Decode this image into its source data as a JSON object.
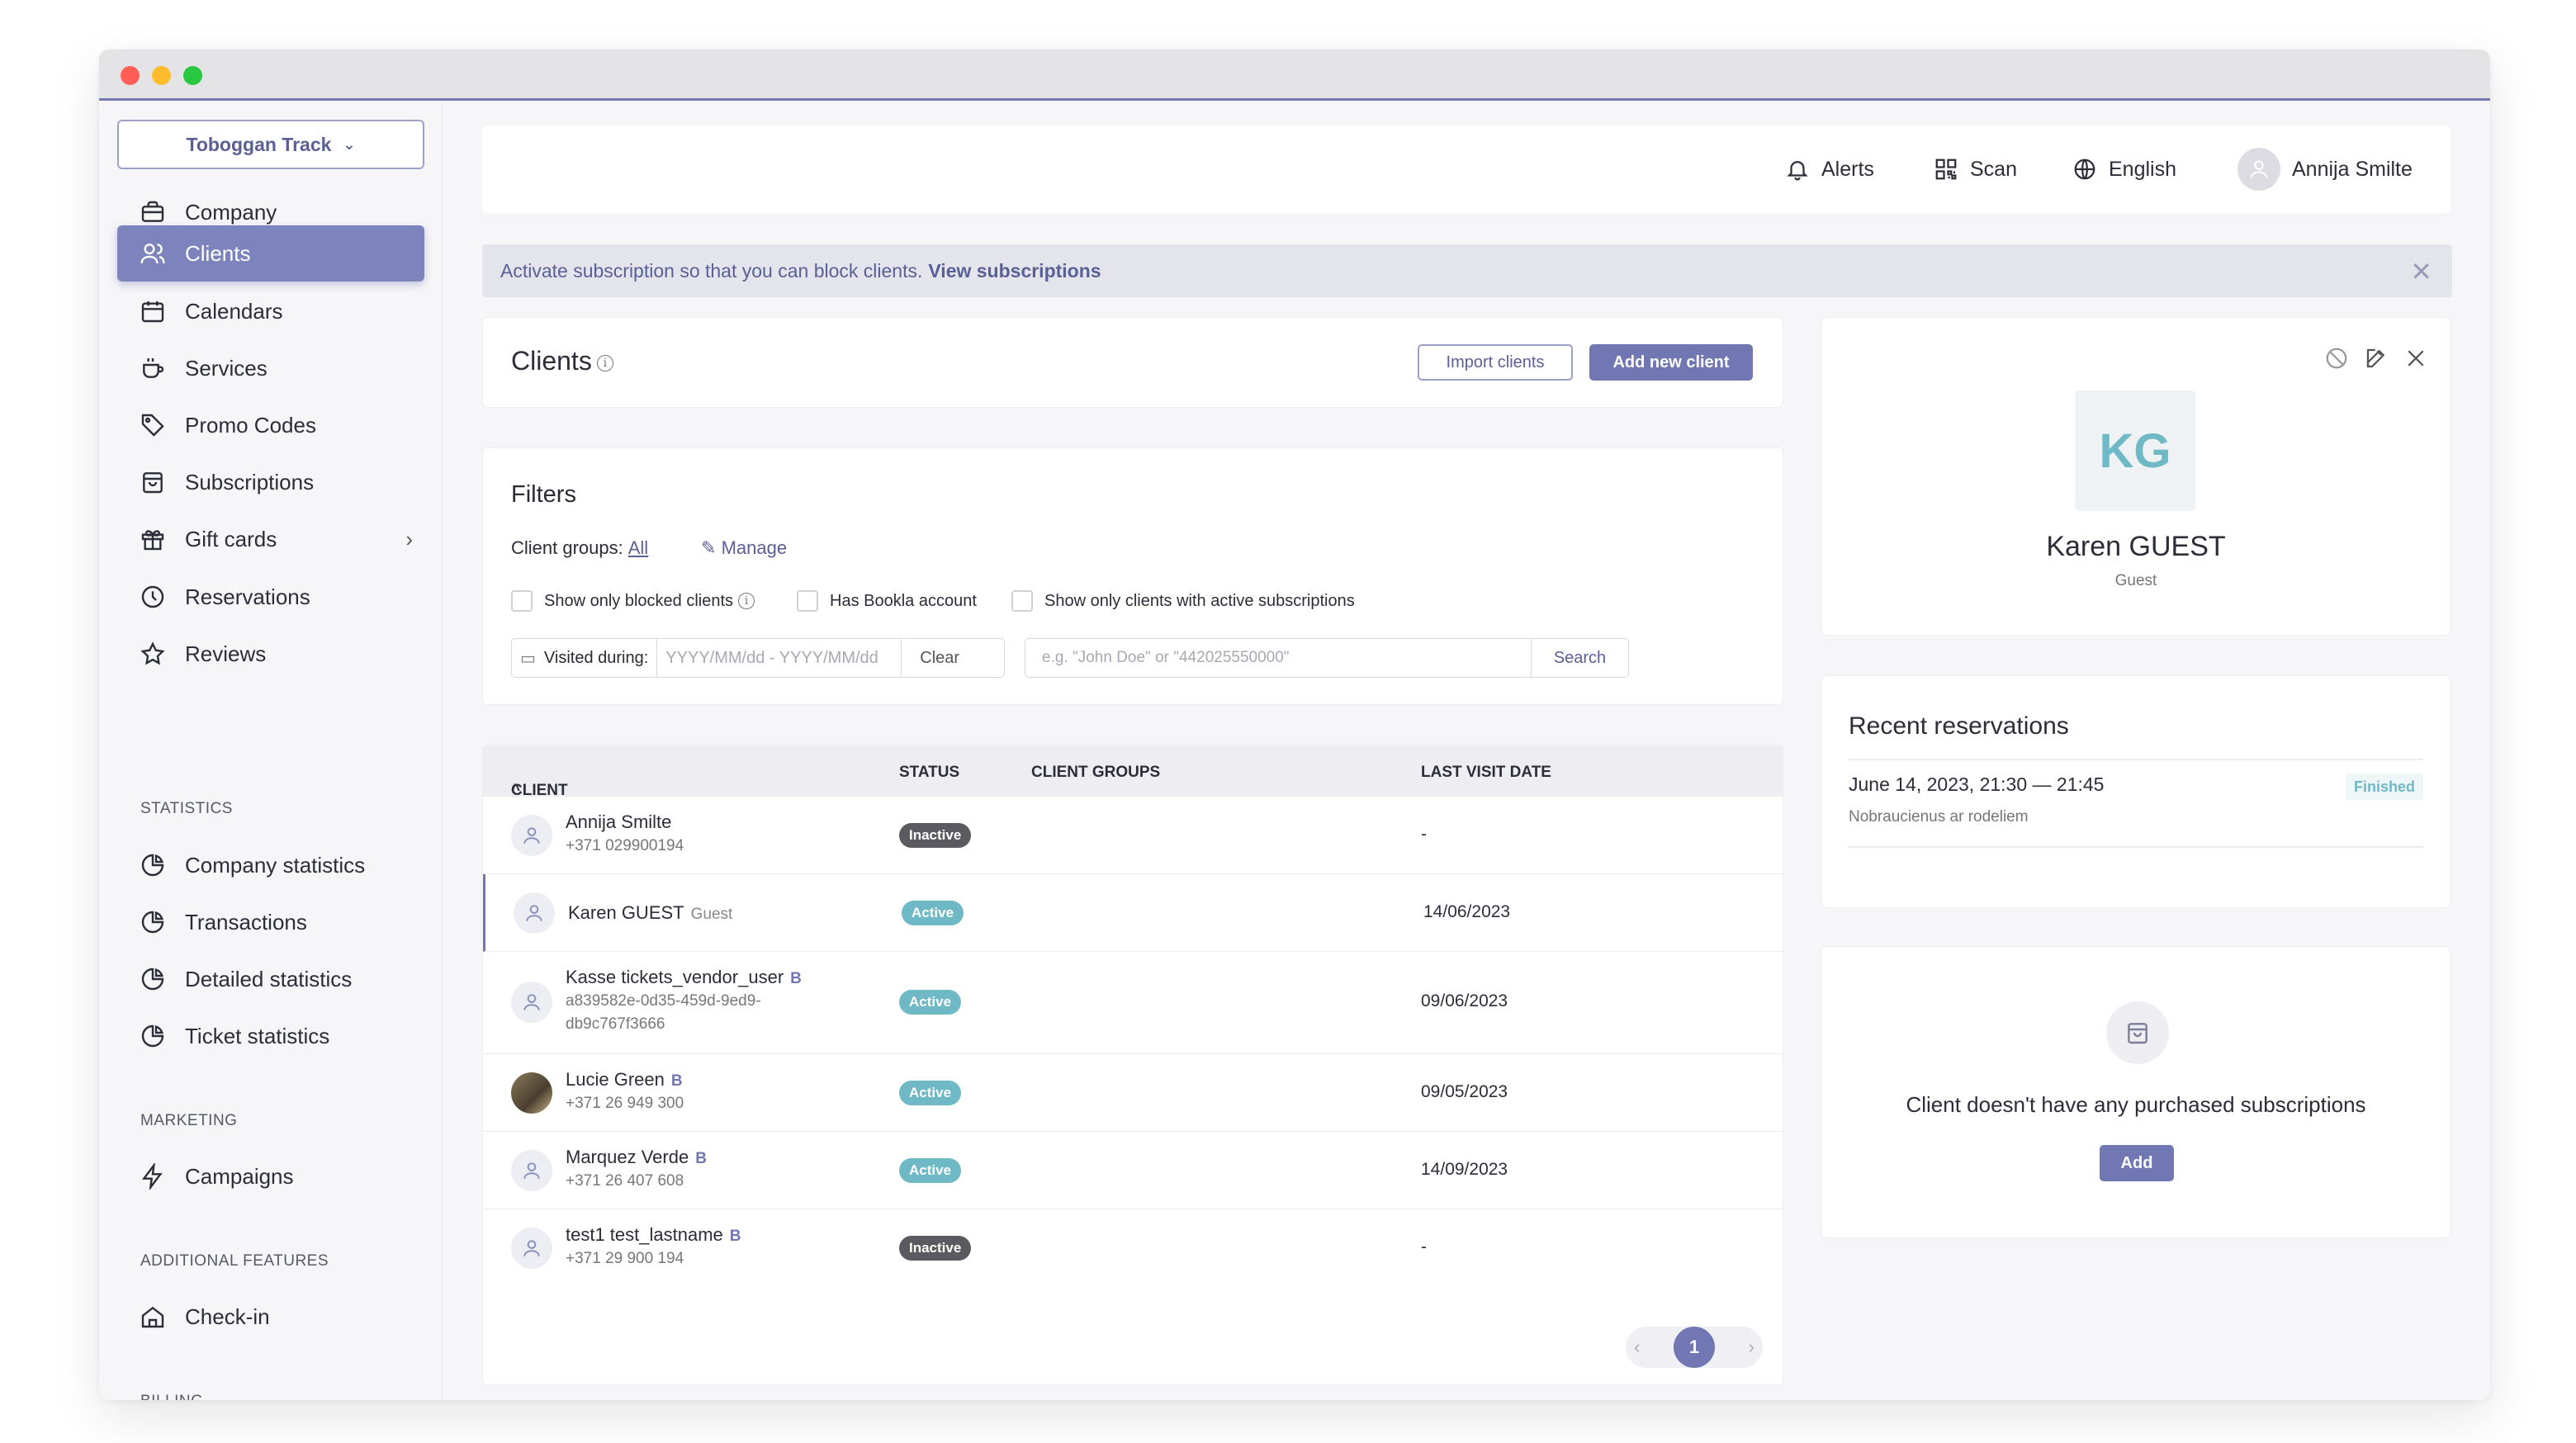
{
  "colors": {
    "accent": "#7077b3",
    "active_badge": "#6fb8c6",
    "inactive_badge": "#5a5a60"
  },
  "sidebar": {
    "company_select": "Toboggan Track",
    "items": [
      {
        "label": "Company",
        "icon": "briefcase-icon"
      },
      {
        "label": "Clients",
        "icon": "users-icon",
        "active": true
      },
      {
        "label": "Calendars",
        "icon": "calendar-icon"
      },
      {
        "label": "Services",
        "icon": "cup-icon"
      },
      {
        "label": "Promo Codes",
        "icon": "tag-icon"
      },
      {
        "label": "Subscriptions",
        "icon": "bag-icon"
      },
      {
        "label": "Gift cards",
        "icon": "gift-icon"
      },
      {
        "label": "Reservations",
        "icon": "clock-icon"
      },
      {
        "label": "Reviews",
        "icon": "star-icon"
      }
    ],
    "statistics_heading": "STATISTICS",
    "statistics": [
      {
        "label": "Company statistics",
        "icon": "pie-chart-icon"
      },
      {
        "label": "Transactions",
        "icon": "pie-chart-icon"
      },
      {
        "label": "Detailed statistics",
        "icon": "pie-chart-icon"
      },
      {
        "label": "Ticket statistics",
        "icon": "pie-chart-icon"
      }
    ],
    "marketing_heading": "MARKETING",
    "marketing": [
      {
        "label": "Campaigns",
        "icon": "lightning-icon"
      }
    ],
    "additional_heading": "ADDITIONAL FEATURES",
    "additional": [
      {
        "label": "Check-in",
        "icon": "home-icon"
      }
    ],
    "billing_heading": "BILLING"
  },
  "topbar": {
    "alerts": "Alerts",
    "scan": "Scan",
    "language": "English",
    "user": "Annija Smilte"
  },
  "banner": {
    "text": "Activate subscription so that you can block clients.",
    "link": "View subscriptions",
    "close": "✕"
  },
  "clients_header": {
    "title": "Clients",
    "import_button": "Import clients",
    "add_button": "Add new client"
  },
  "filters": {
    "title": "Filters",
    "groups_label": "Client groups:",
    "groups_value": "All",
    "manage": "Manage",
    "checkbox_blocked": "Show only blocked clients",
    "checkbox_bookla": "Has Bookla account",
    "checkbox_subs": "Show only clients with active subscriptions",
    "visited_label": "Visited during:",
    "date_placeholder": "YYYY/MM/dd - YYYY/MM/dd",
    "clear": "Clear",
    "search_placeholder": "e.g. \"John Doe\" or \"442025550000\"",
    "search_button": "Search"
  },
  "table": {
    "columns": [
      "CLIENT",
      "STATUS",
      "CLIENT GROUPS",
      "LAST VISIT DATE"
    ],
    "rows": [
      {
        "name": "Annija Smilte",
        "sub": "+371 029900194",
        "status": "Inactive",
        "date": "-"
      },
      {
        "name": "Karen GUEST",
        "tag": "Guest",
        "status": "Active",
        "date": "14/06/2023"
      },
      {
        "name": "Kasse tickets_vendor_user",
        "b": "B",
        "sub1": "a839582e-0d35-459d-9ed9-",
        "sub2": "db9c767f3666",
        "status": "Active",
        "date": "09/06/2023"
      },
      {
        "name": "Lucie Green",
        "b": "B",
        "sub": "+371 26 949 300",
        "status": "Active",
        "date": "09/05/2023"
      },
      {
        "name": "Marquez Verde",
        "b": "B",
        "sub": "+371 26 407 608",
        "status": "Active",
        "date": "14/09/2023"
      },
      {
        "name": "test1 test_lastname",
        "b": "B",
        "sub": "+371 29 900 194",
        "status": "Inactive",
        "date": "-"
      }
    ],
    "pager": {
      "prev": "‹",
      "current": "1",
      "next": "›"
    }
  },
  "profile": {
    "initials": "KG",
    "name": "Karen GUEST",
    "role": "Guest"
  },
  "recent": {
    "title": "Recent reservations",
    "when": "June 14, 2023, 21:30 — 21:45",
    "where": "Nobraucienus ar rodeliem",
    "status": "Finished"
  },
  "subscriptions": {
    "message": "Client doesn't have any purchased subscriptions",
    "add": "Add"
  }
}
